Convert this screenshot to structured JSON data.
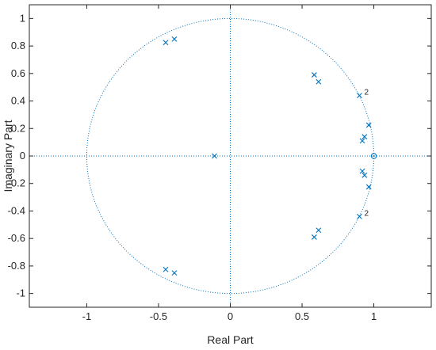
{
  "chart_data": {
    "type": "scatter",
    "title": "",
    "xlabel": "Real Part",
    "ylabel": "Imaginary Part",
    "xlim": [
      -1.4,
      1.4
    ],
    "ylim": [
      -1.1,
      1.1
    ],
    "xticks": [
      -1,
      -0.5,
      0,
      0.5,
      1
    ],
    "xtick_labels": [
      "-1",
      "-0.5",
      "0",
      "0.5",
      "1"
    ],
    "yticks": [
      1,
      0.8,
      0.6,
      0.4,
      0.2,
      0,
      -0.2,
      -0.4,
      -0.6,
      -0.8,
      -1
    ],
    "ytick_labels": [
      "1",
      "0.8",
      "0.6",
      "0.4",
      "0.2",
      "0",
      "-0.2",
      "-0.4",
      "-0.6",
      "-0.8",
      "-1"
    ],
    "grid": false,
    "unit_circle": true,
    "color": "#0072BD",
    "poles": [
      {
        "x": -0.45,
        "y": 0.825
      },
      {
        "x": -0.39,
        "y": 0.85
      },
      {
        "x": -0.45,
        "y": -0.825
      },
      {
        "x": -0.39,
        "y": -0.85
      },
      {
        "x": -0.11,
        "y": 0.0
      },
      {
        "x": 0.585,
        "y": 0.59
      },
      {
        "x": 0.615,
        "y": 0.54
      },
      {
        "x": 0.585,
        "y": -0.59
      },
      {
        "x": 0.615,
        "y": -0.54
      },
      {
        "x": 0.9,
        "y": 0.44,
        "multiplicity": "2"
      },
      {
        "x": 0.9,
        "y": -0.44,
        "multiplicity": "2"
      },
      {
        "x": 0.965,
        "y": 0.225
      },
      {
        "x": 0.965,
        "y": -0.225
      },
      {
        "x": 0.92,
        "y": 0.11
      },
      {
        "x": 0.935,
        "y": 0.14
      },
      {
        "x": 0.92,
        "y": -0.11
      },
      {
        "x": 0.935,
        "y": -0.14
      }
    ],
    "zeros": [
      {
        "x": 1.0,
        "y": 0.0
      }
    ]
  }
}
